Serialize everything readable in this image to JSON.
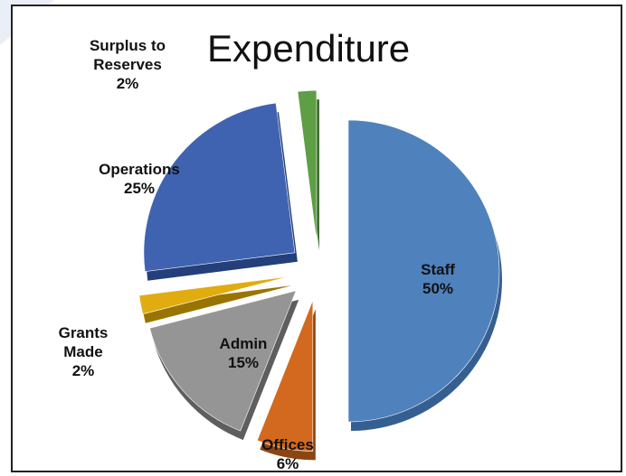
{
  "chart_data": {
    "type": "pie",
    "style": "exploded-3d",
    "title": "Expenditure",
    "slices": [
      {
        "name": "Staff",
        "value": 50,
        "label": "50%",
        "color": "#4F81BD",
        "shade": "#365F91"
      },
      {
        "name": "Offices",
        "value": 6,
        "label": "6%",
        "color": "#D2691E",
        "shade": "#8B4513"
      },
      {
        "name": "Admin",
        "value": 15,
        "label": "15%",
        "color": "#959595",
        "shade": "#5E5E5E"
      },
      {
        "name": "Grants Made",
        "value": 2,
        "label": "2%",
        "color": "#E0AC10",
        "shade": "#9A7400"
      },
      {
        "name": "Operations",
        "value": 25,
        "label": "25%",
        "color": "#3F63B1",
        "shade": "#243F7A"
      },
      {
        "name": "Surplus to Reserves",
        "value": 2,
        "label": "2%",
        "color": "#5E9E45",
        "shade": "#3A6A2A"
      }
    ],
    "legend": "none"
  }
}
